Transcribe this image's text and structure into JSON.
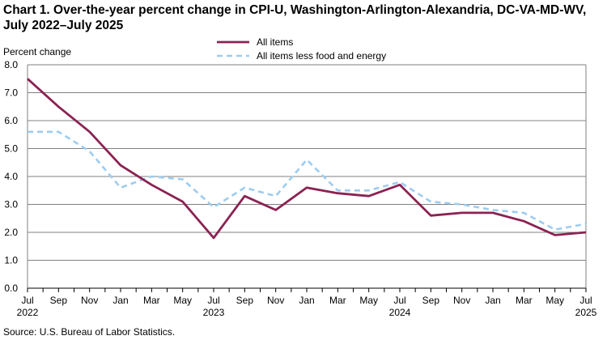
{
  "title": "Chart 1. Over-the-year percent change in CPI-U, Washington-Arlington-Alexandria,  DC-VA-MD-WV, July 2022–July 2025",
  "source": "Source: U.S. Bureau  of Labor Statistics.",
  "colors": {
    "all_items": "#8B2252",
    "core": "#9DCCF0",
    "grid": "#808080",
    "axis": "#000000"
  },
  "chart_data": {
    "type": "line",
    "ylabel": "Percent change",
    "xlabel": "",
    "ylim": [
      0,
      8
    ],
    "yticks": [
      "0.0",
      "1.0",
      "2.0",
      "3.0",
      "4.0",
      "5.0",
      "6.0",
      "7.0",
      "8.0"
    ],
    "x": [
      "Jul 2022",
      "Aug 2022",
      "Sep 2022",
      "Oct 2022",
      "Nov 2022",
      "Dec 2022",
      "Jan 2023",
      "Feb 2023",
      "Mar 2023",
      "Apr 2023",
      "May 2023",
      "Jun 2023",
      "Jul 2023",
      "Aug 2023",
      "Sep 2023",
      "Oct 2023",
      "Nov 2023",
      "Dec 2023",
      "Jan 2024",
      "Feb 2024",
      "Mar 2024",
      "Apr 2024",
      "May 2024",
      "Jun 2024",
      "Jul 2024",
      "Aug 2024",
      "Sep 2024",
      "Oct 2024",
      "Nov 2024",
      "Dec 2024",
      "Jan 2025",
      "Feb 2025",
      "Mar 2025",
      "Apr 2025",
      "May 2025",
      "Jun 2025",
      "Jul 2025"
    ],
    "xticks": [
      {
        "label": "Jul",
        "year": "2022",
        "index": 0
      },
      {
        "label": "Sep",
        "year": "",
        "index": 2
      },
      {
        "label": "Nov",
        "year": "",
        "index": 4
      },
      {
        "label": "Jan",
        "year": "",
        "index": 6
      },
      {
        "label": "Mar",
        "year": "",
        "index": 8
      },
      {
        "label": "May",
        "year": "",
        "index": 10
      },
      {
        "label": "Jul",
        "year": "2023",
        "index": 12
      },
      {
        "label": "Sep",
        "year": "",
        "index": 14
      },
      {
        "label": "Nov",
        "year": "",
        "index": 16
      },
      {
        "label": "Jan",
        "year": "",
        "index": 18
      },
      {
        "label": "Mar",
        "year": "",
        "index": 20
      },
      {
        "label": "May",
        "year": "",
        "index": 22
      },
      {
        "label": "Jul",
        "year": "2024",
        "index": 24
      },
      {
        "label": "Sep",
        "year": "",
        "index": 26
      },
      {
        "label": "Nov",
        "year": "",
        "index": 28
      },
      {
        "label": "Jan",
        "year": "",
        "index": 30
      },
      {
        "label": "Mar",
        "year": "",
        "index": 32
      },
      {
        "label": "May",
        "year": "",
        "index": 34
      },
      {
        "label": "Jul",
        "year": "2025",
        "index": 36
      }
    ],
    "series": [
      {
        "name": "All items",
        "style": "solid",
        "values": [
          7.5,
          null,
          6.5,
          null,
          5.6,
          null,
          4.4,
          null,
          3.7,
          null,
          3.1,
          null,
          1.8,
          null,
          3.3,
          null,
          2.8,
          null,
          3.6,
          null,
          3.4,
          null,
          3.3,
          null,
          3.7,
          null,
          2.6,
          null,
          2.7,
          null,
          2.7,
          null,
          2.4,
          null,
          1.9,
          null,
          2.0
        ]
      },
      {
        "name": "All items less food and energy",
        "style": "dashed",
        "values": [
          5.6,
          null,
          5.6,
          null,
          4.9,
          null,
          3.6,
          null,
          4.0,
          null,
          3.9,
          null,
          2.9,
          null,
          3.6,
          null,
          3.3,
          null,
          4.6,
          null,
          3.5,
          null,
          3.5,
          null,
          3.8,
          null,
          3.1,
          null,
          3.0,
          null,
          2.8,
          null,
          2.7,
          null,
          2.1,
          null,
          2.3
        ]
      }
    ],
    "legend_position": "top-center",
    "grid": true
  }
}
